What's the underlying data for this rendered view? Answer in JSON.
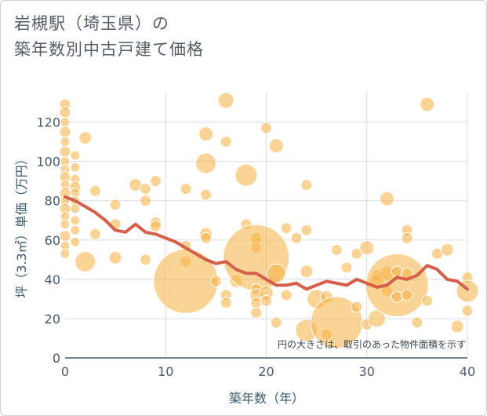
{
  "title_line1": "岩槻駅（埼玉県）の",
  "title_line2": "築年数別中古戸建て価格",
  "colors": {
    "bubble": "#f5b041",
    "line": "#d4604a",
    "grid": "#d8dee6",
    "axis": "#4a5a6a"
  },
  "chart_data": {
    "type": "scatter",
    "title": "岩槻駅（埼玉県）の築年数別中古戸建て価格",
    "xlabel": "築年数（年）",
    "ylabel": "坪（3.3㎡）単価（万円）",
    "xlim": [
      0,
      40
    ],
    "ylim": [
      0,
      135
    ],
    "xticks": [
      0,
      10,
      20,
      30,
      40
    ],
    "yticks": [
      0,
      20,
      40,
      60,
      80,
      100,
      120
    ],
    "annotation": "円の大きさは、取引のあった物件面積を示す",
    "scatter": [
      {
        "x": 0,
        "y": 129,
        "s": 7
      },
      {
        "x": 0,
        "y": 125,
        "s": 7
      },
      {
        "x": 0,
        "y": 120,
        "s": 6
      },
      {
        "x": 0,
        "y": 115,
        "s": 7
      },
      {
        "x": 0,
        "y": 110,
        "s": 6
      },
      {
        "x": 0,
        "y": 105,
        "s": 7
      },
      {
        "x": 0,
        "y": 100,
        "s": 6
      },
      {
        "x": 0,
        "y": 96,
        "s": 6
      },
      {
        "x": 0,
        "y": 92,
        "s": 7
      },
      {
        "x": 0,
        "y": 88,
        "s": 6
      },
      {
        "x": 0,
        "y": 84,
        "s": 7
      },
      {
        "x": 0,
        "y": 80,
        "s": 6
      },
      {
        "x": 0,
        "y": 76,
        "s": 7
      },
      {
        "x": 0,
        "y": 72,
        "s": 6
      },
      {
        "x": 0,
        "y": 68,
        "s": 6
      },
      {
        "x": 0,
        "y": 62,
        "s": 7
      },
      {
        "x": 0,
        "y": 57,
        "s": 6
      },
      {
        "x": 0,
        "y": 53,
        "s": 6
      },
      {
        "x": 1,
        "y": 103,
        "s": 6
      },
      {
        "x": 1,
        "y": 97,
        "s": 6
      },
      {
        "x": 1,
        "y": 91,
        "s": 6
      },
      {
        "x": 1,
        "y": 87,
        "s": 7
      },
      {
        "x": 1,
        "y": 84,
        "s": 6
      },
      {
        "x": 1,
        "y": 80,
        "s": 6
      },
      {
        "x": 1,
        "y": 76,
        "s": 6
      },
      {
        "x": 1,
        "y": 70,
        "s": 6
      },
      {
        "x": 1,
        "y": 65,
        "s": 6
      },
      {
        "x": 1,
        "y": 59,
        "s": 6
      },
      {
        "x": 2,
        "y": 112,
        "s": 8
      },
      {
        "x": 2,
        "y": 49,
        "s": 13
      },
      {
        "x": 3,
        "y": 85,
        "s": 7
      },
      {
        "x": 3,
        "y": 63,
        "s": 7
      },
      {
        "x": 5,
        "y": 78,
        "s": 7
      },
      {
        "x": 5,
        "y": 68,
        "s": 7
      },
      {
        "x": 5,
        "y": 51,
        "s": 8
      },
      {
        "x": 7,
        "y": 88,
        "s": 8
      },
      {
        "x": 8,
        "y": 86,
        "s": 7
      },
      {
        "x": 8,
        "y": 80,
        "s": 7
      },
      {
        "x": 8,
        "y": 50,
        "s": 7
      },
      {
        "x": 9,
        "y": 90,
        "s": 7
      },
      {
        "x": 9,
        "y": 69,
        "s": 7
      },
      {
        "x": 9,
        "y": 67,
        "s": 7
      },
      {
        "x": 12,
        "y": 86,
        "s": 7
      },
      {
        "x": 12,
        "y": 57,
        "s": 7
      },
      {
        "x": 12,
        "y": 49,
        "s": 7
      },
      {
        "x": 12,
        "y": 39,
        "s": 41
      },
      {
        "x": 14,
        "y": 114,
        "s": 9
      },
      {
        "x": 14,
        "y": 99,
        "s": 13
      },
      {
        "x": 14,
        "y": 83,
        "s": 7
      },
      {
        "x": 14,
        "y": 63,
        "s": 8
      },
      {
        "x": 14,
        "y": 61,
        "s": 7
      },
      {
        "x": 15,
        "y": 39,
        "s": 7
      },
      {
        "x": 16,
        "y": 131,
        "s": 10
      },
      {
        "x": 16,
        "y": 110,
        "s": 7
      },
      {
        "x": 16,
        "y": 32,
        "s": 7
      },
      {
        "x": 16,
        "y": 28,
        "s": 7
      },
      {
        "x": 17,
        "y": 39,
        "s": 8
      },
      {
        "x": 18,
        "y": 93,
        "s": 14
      },
      {
        "x": 18,
        "y": 68,
        "s": 7
      },
      {
        "x": 19,
        "y": 61,
        "s": 7
      },
      {
        "x": 19,
        "y": 56,
        "s": 7
      },
      {
        "x": 19,
        "y": 51,
        "s": 42
      },
      {
        "x": 19,
        "y": 35,
        "s": 7
      },
      {
        "x": 19,
        "y": 32,
        "s": 8
      },
      {
        "x": 19,
        "y": 28,
        "s": 7
      },
      {
        "x": 19,
        "y": 23,
        "s": 7
      },
      {
        "x": 20,
        "y": 117,
        "s": 7
      },
      {
        "x": 20,
        "y": 33,
        "s": 9
      },
      {
        "x": 20,
        "y": 29,
        "s": 7
      },
      {
        "x": 21,
        "y": 108,
        "s": 9
      },
      {
        "x": 21,
        "y": 43,
        "s": 12
      },
      {
        "x": 21,
        "y": 18,
        "s": 7
      },
      {
        "x": 22,
        "y": 66,
        "s": 7
      },
      {
        "x": 22,
        "y": 32,
        "s": 7
      },
      {
        "x": 23,
        "y": 61,
        "s": 7
      },
      {
        "x": 24,
        "y": 88,
        "s": 7
      },
      {
        "x": 24,
        "y": 65,
        "s": 7
      },
      {
        "x": 24,
        "y": 44,
        "s": 8
      },
      {
        "x": 24,
        "y": 14,
        "s": 14
      },
      {
        "x": 25,
        "y": 30,
        "s": 12
      },
      {
        "x": 26,
        "y": 31,
        "s": 8
      },
      {
        "x": 26,
        "y": 12,
        "s": 7
      },
      {
        "x": 27,
        "y": 55,
        "s": 7
      },
      {
        "x": 27,
        "y": 18,
        "s": 33
      },
      {
        "x": 28,
        "y": 46,
        "s": 7
      },
      {
        "x": 29,
        "y": 53,
        "s": 7
      },
      {
        "x": 29,
        "y": 26,
        "s": 7
      },
      {
        "x": 30,
        "y": 56,
        "s": 9
      },
      {
        "x": 30,
        "y": 17,
        "s": 7
      },
      {
        "x": 31,
        "y": 42,
        "s": 7
      },
      {
        "x": 31,
        "y": 39,
        "s": 9
      },
      {
        "x": 31,
        "y": 20,
        "s": 11
      },
      {
        "x": 32,
        "y": 81,
        "s": 9
      },
      {
        "x": 32,
        "y": 43,
        "s": 9
      },
      {
        "x": 32,
        "y": 34,
        "s": 7
      },
      {
        "x": 33,
        "y": 37,
        "s": 40
      },
      {
        "x": 33,
        "y": 44,
        "s": 7
      },
      {
        "x": 33,
        "y": 31,
        "s": 7
      },
      {
        "x": 34,
        "y": 65,
        "s": 7
      },
      {
        "x": 34,
        "y": 61,
        "s": 7
      },
      {
        "x": 34,
        "y": 43,
        "s": 7
      },
      {
        "x": 34,
        "y": 32,
        "s": 7
      },
      {
        "x": 35,
        "y": 18,
        "s": 7
      },
      {
        "x": 36,
        "y": 129,
        "s": 9
      },
      {
        "x": 36,
        "y": 29,
        "s": 7
      },
      {
        "x": 37,
        "y": 53,
        "s": 7
      },
      {
        "x": 38,
        "y": 55,
        "s": 8
      },
      {
        "x": 39,
        "y": 16,
        "s": 8
      },
      {
        "x": 40,
        "y": 41,
        "s": 7
      },
      {
        "x": 40,
        "y": 34,
        "s": 14
      },
      {
        "x": 40,
        "y": 24,
        "s": 7
      }
    ],
    "trend_line": {
      "x": [
        0,
        1,
        2,
        3,
        4,
        5,
        6,
        7,
        8,
        9,
        10,
        11,
        12,
        13,
        14,
        15,
        16,
        17,
        18,
        19,
        20,
        21,
        22,
        23,
        24,
        25,
        26,
        27,
        28,
        29,
        30,
        31,
        32,
        33,
        34,
        35,
        36,
        37,
        38,
        39,
        40
      ],
      "y": [
        82,
        80,
        77,
        74,
        70,
        65,
        64,
        68,
        64,
        63,
        61,
        59,
        56,
        53,
        50,
        48,
        49,
        45,
        43,
        43,
        40,
        37,
        37,
        38,
        35,
        37,
        39,
        38,
        37,
        40,
        38,
        36,
        37,
        41,
        40,
        42,
        47,
        45,
        40,
        39,
        35
      ]
    }
  }
}
